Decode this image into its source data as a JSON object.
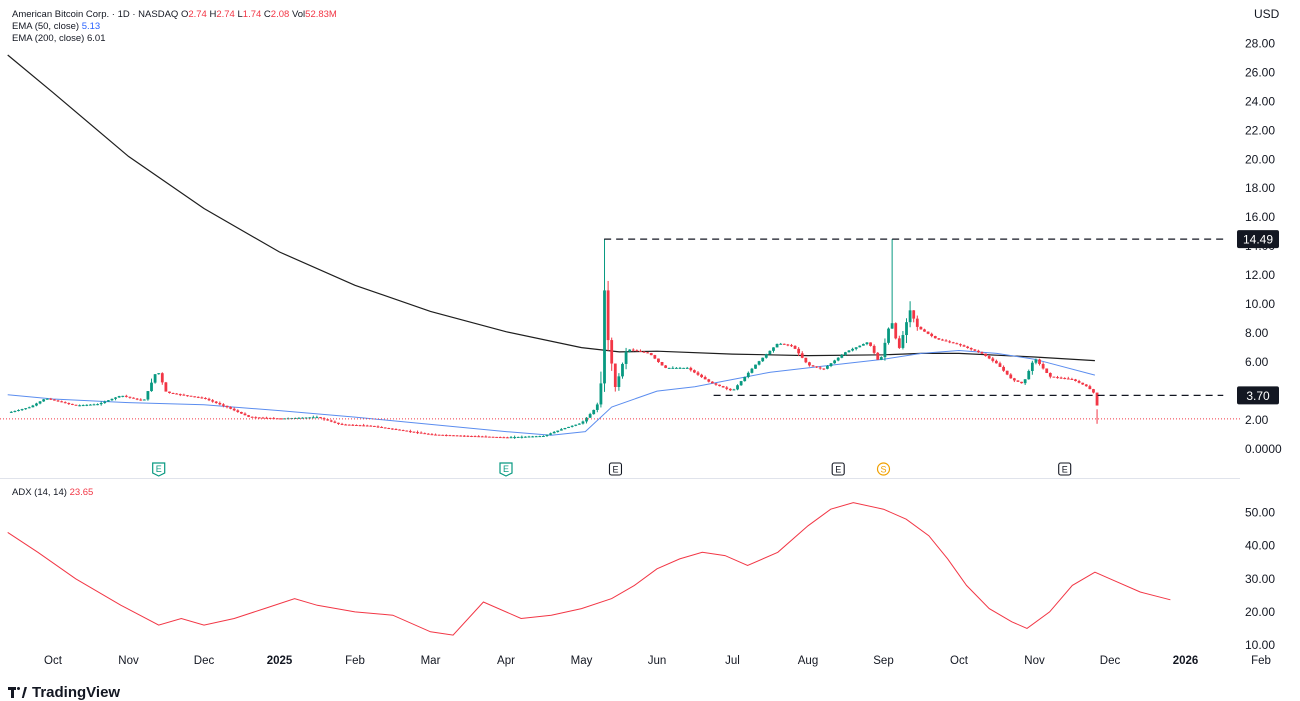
{
  "header": {
    "symbol": "American Bitcoin Corp. · 1D · NASDAQ",
    "o_label": "O",
    "o_value": "2.74",
    "h_label": "H",
    "h_value": "2.74",
    "l_label": "L",
    "l_value": "1.74",
    "c_label": "C",
    "c_value": "2.08",
    "vol_label": "Vol",
    "vol_value": "52.83M",
    "ema50_label": "EMA (50, close)",
    "ema50_value": "5.13",
    "ema200_label": "EMA (200, close)",
    "ema200_value": "6.01",
    "adx_label": "ADX (14, 14)",
    "adx_value": "23.65"
  },
  "currency": "USD",
  "footer": {
    "brand": "TradingView"
  },
  "colors": {
    "up": "#089981",
    "down": "#f23645",
    "ema50": "#5b8def",
    "ema200": "#1e1e1e",
    "adx": "#f23645"
  },
  "chart_data": [
    {
      "type": "candlestick",
      "ylim": [
        0,
        29.2
      ],
      "yticks": [
        "28.00",
        "26.00",
        "24.00",
        "22.00",
        "20.00",
        "18.00",
        "16.00",
        "14.00",
        "12.00",
        "10.00",
        "8.00",
        "6.00",
        "4.00",
        "2.00",
        "0.0000"
      ],
      "x_labels": [
        "Oct",
        "Nov",
        "Dec",
        "2025",
        "Feb",
        "Mar",
        "Apr",
        "May",
        "Jun",
        "Jul",
        "Aug",
        "Sep",
        "Oct",
        "Nov",
        "Dec",
        "2026",
        "Feb"
      ],
      "price_labels": [
        {
          "value": 14.49,
          "label": "14.49"
        },
        {
          "value": 3.7,
          "label": "3.70"
        }
      ],
      "level_lines": [
        {
          "value": 14.49,
          "from_month": 7.3,
          "to_month": 15.5
        },
        {
          "value": 3.7,
          "from_month": 8.75,
          "to_month": 15.5
        }
      ],
      "last_price": 2.08,
      "events": [
        {
          "month": 1.4,
          "label": "E",
          "kind": "earnings-green"
        },
        {
          "month": 6.0,
          "label": "E",
          "kind": "earnings-green"
        },
        {
          "month": 7.45,
          "label": "E",
          "kind": "earnings"
        },
        {
          "month": 10.4,
          "label": "E",
          "kind": "earnings"
        },
        {
          "month": 11.0,
          "label": "S",
          "kind": "split"
        },
        {
          "month": 13.4,
          "label": "E",
          "kind": "earnings"
        }
      ],
      "ema200": [
        [
          -0.6,
          27.2
        ],
        [
          0,
          24.6
        ],
        [
          1,
          20.2
        ],
        [
          2,
          16.6
        ],
        [
          3,
          13.6
        ],
        [
          4,
          11.3
        ],
        [
          5,
          9.5
        ],
        [
          6,
          8.1
        ],
        [
          7,
          7.0
        ],
        [
          7.5,
          6.7
        ],
        [
          8,
          6.75
        ],
        [
          9,
          6.55
        ],
        [
          10,
          6.45
        ],
        [
          11,
          6.5
        ],
        [
          11.5,
          6.6
        ],
        [
          12,
          6.6
        ],
        [
          13,
          6.35
        ],
        [
          13.8,
          6.1
        ]
      ],
      "ema50": [
        [
          -0.6,
          3.75
        ],
        [
          0,
          3.45
        ],
        [
          1,
          3.2
        ],
        [
          2,
          3.05
        ],
        [
          3,
          2.65
        ],
        [
          4,
          2.2
        ],
        [
          5,
          1.7
        ],
        [
          6,
          1.2
        ],
        [
          6.6,
          0.95
        ],
        [
          7.05,
          1.2
        ],
        [
          7.4,
          2.9
        ],
        [
          8,
          4.0
        ],
        [
          8.5,
          4.3
        ],
        [
          9,
          4.8
        ],
        [
          9.5,
          5.3
        ],
        [
          10,
          5.6
        ],
        [
          10.5,
          5.9
        ],
        [
          11,
          6.2
        ],
        [
          11.5,
          6.6
        ],
        [
          12,
          6.8
        ],
        [
          12.5,
          6.6
        ],
        [
          13,
          6.2
        ],
        [
          13.8,
          5.1
        ]
      ],
      "price_path": [
        [
          -0.6,
          2.5
        ],
        [
          -0.3,
          2.9
        ],
        [
          -0.1,
          3.5
        ],
        [
          0.3,
          3.0
        ],
        [
          0.6,
          3.1
        ],
        [
          0.9,
          3.7
        ],
        [
          1.2,
          3.3
        ],
        [
          1.38,
          5.5
        ],
        [
          1.5,
          3.9
        ],
        [
          2.0,
          3.5
        ],
        [
          2.3,
          2.9
        ],
        [
          2.6,
          2.2
        ],
        [
          3.0,
          2.1
        ],
        [
          3.5,
          2.2
        ],
        [
          3.8,
          1.7
        ],
        [
          4.2,
          1.6
        ],
        [
          4.6,
          1.3
        ],
        [
          5.0,
          1.0
        ],
        [
          5.5,
          0.9
        ],
        [
          6.0,
          0.8
        ],
        [
          6.5,
          0.9
        ],
        [
          6.75,
          1.4
        ],
        [
          7.0,
          1.8
        ],
        [
          7.15,
          2.6
        ],
        [
          7.25,
          3.4
        ],
        [
          7.3,
          11.3
        ],
        [
          7.35,
          7.6
        ],
        [
          7.45,
          4.2
        ],
        [
          7.6,
          6.9
        ],
        [
          7.9,
          6.6
        ],
        [
          8.1,
          5.6
        ],
        [
          8.4,
          5.6
        ],
        [
          8.7,
          4.6
        ],
        [
          9.0,
          4.0
        ],
        [
          9.3,
          5.8
        ],
        [
          9.6,
          7.3
        ],
        [
          9.8,
          7.1
        ],
        [
          10.0,
          5.8
        ],
        [
          10.2,
          5.5
        ],
        [
          10.5,
          6.7
        ],
        [
          10.8,
          7.4
        ],
        [
          10.95,
          5.9
        ],
        [
          11.1,
          9.0
        ],
        [
          11.2,
          6.8
        ],
        [
          11.35,
          9.6
        ],
        [
          11.45,
          8.4
        ],
        [
          11.7,
          7.6
        ],
        [
          12.0,
          7.2
        ],
        [
          12.3,
          6.6
        ],
        [
          12.5,
          5.9
        ],
        [
          12.7,
          4.8
        ],
        [
          12.85,
          4.5
        ],
        [
          13.0,
          6.3
        ],
        [
          13.2,
          5.0
        ],
        [
          13.5,
          4.8
        ],
        [
          13.7,
          4.3
        ],
        [
          13.8,
          3.8
        ],
        [
          13.85,
          2.4
        ]
      ]
    },
    {
      "type": "line",
      "series": [
        {
          "name": "ADX (14, 14)",
          "color": "#f23645"
        }
      ],
      "ylim": [
        10,
        55
      ],
      "yticks": [
        "50.00",
        "40.00",
        "30.00",
        "20.00",
        "10.00"
      ],
      "adx": [
        [
          -0.6,
          44
        ],
        [
          -0.2,
          38
        ],
        [
          0.3,
          30
        ],
        [
          0.9,
          22
        ],
        [
          1.4,
          16
        ],
        [
          1.7,
          18
        ],
        [
          2.0,
          16
        ],
        [
          2.4,
          18
        ],
        [
          2.8,
          21
        ],
        [
          3.2,
          24
        ],
        [
          3.5,
          22
        ],
        [
          4.0,
          20
        ],
        [
          4.5,
          19
        ],
        [
          5.0,
          14
        ],
        [
          5.3,
          13
        ],
        [
          5.7,
          23
        ],
        [
          6.2,
          18
        ],
        [
          6.6,
          19
        ],
        [
          7.0,
          21
        ],
        [
          7.4,
          24
        ],
        [
          7.7,
          28
        ],
        [
          8.0,
          33
        ],
        [
          8.3,
          36
        ],
        [
          8.6,
          38
        ],
        [
          8.9,
          37
        ],
        [
          9.2,
          34
        ],
        [
          9.6,
          38
        ],
        [
          10.0,
          46
        ],
        [
          10.3,
          51
        ],
        [
          10.6,
          53
        ],
        [
          11.0,
          51
        ],
        [
          11.3,
          48
        ],
        [
          11.6,
          43
        ],
        [
          11.85,
          36
        ],
        [
          12.1,
          28
        ],
        [
          12.4,
          21
        ],
        [
          12.7,
          17
        ],
        [
          12.9,
          15
        ],
        [
          13.2,
          20
        ],
        [
          13.5,
          28
        ],
        [
          13.8,
          32
        ],
        [
          14.0,
          30
        ],
        [
          14.4,
          26
        ],
        [
          14.8,
          23.65
        ]
      ]
    }
  ]
}
